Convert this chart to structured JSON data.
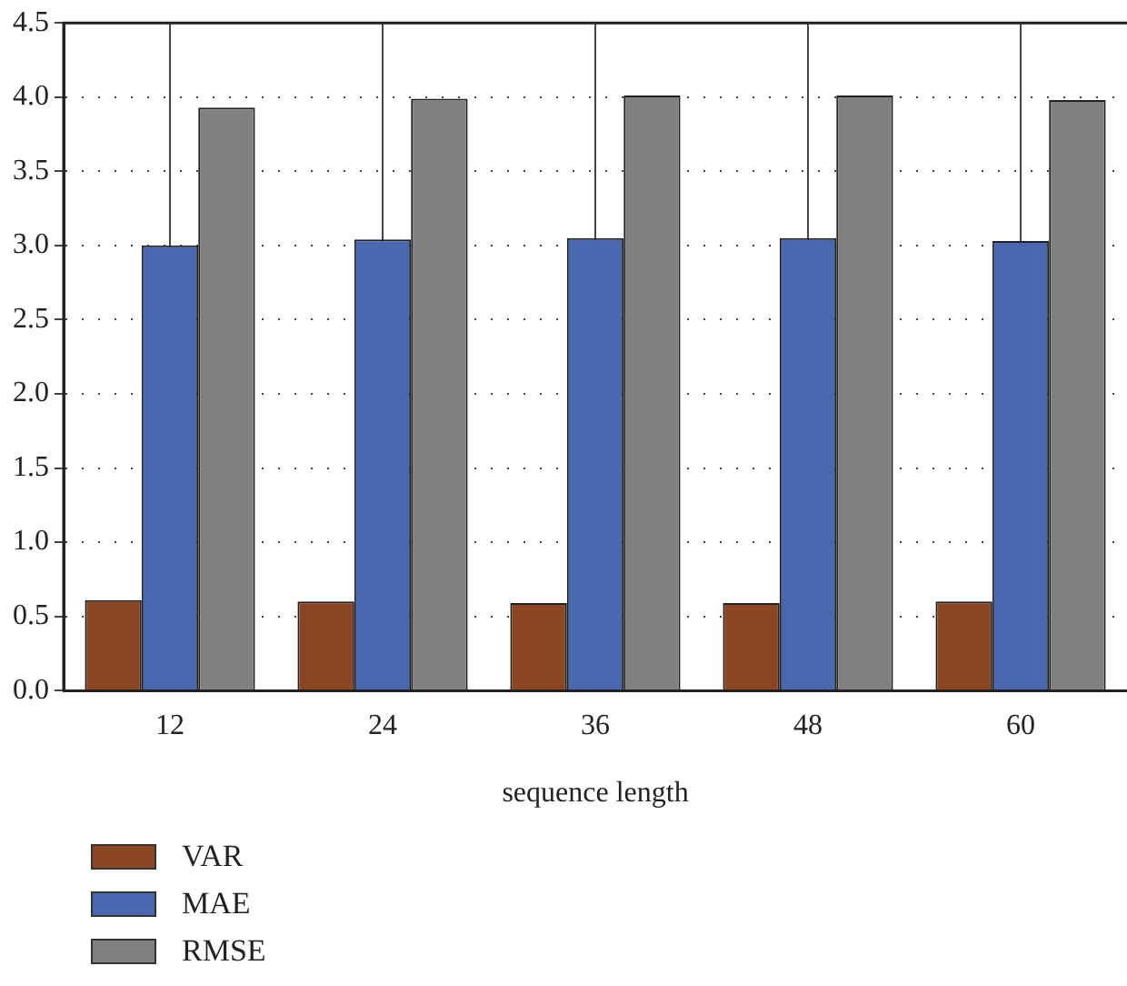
{
  "chart_data": {
    "type": "bar",
    "xlabel": "sequence length",
    "categories": [
      "12",
      "24",
      "36",
      "48",
      "60"
    ],
    "series": [
      {
        "name": "VAR",
        "color": "#8b4520",
        "values": [
          0.61,
          0.6,
          0.59,
          0.59,
          0.6
        ]
      },
      {
        "name": "MAE",
        "color": "#4868b0",
        "values": [
          3.0,
          3.04,
          3.05,
          3.05,
          3.03
        ]
      },
      {
        "name": "RMSE",
        "color": "#808080",
        "values": [
          3.93,
          3.99,
          4.01,
          4.01,
          3.98
        ]
      }
    ],
    "ylim": [
      0,
      4.5
    ],
    "yticks": [
      {
        "value": 0,
        "label": "0.0"
      },
      {
        "value": 0.5,
        "label": "0.5"
      },
      {
        "value": 1,
        "label": "1.0"
      },
      {
        "value": 1.5,
        "label": "1.5"
      },
      {
        "value": 2,
        "label": "2.0"
      },
      {
        "value": 2.5,
        "label": "2.5"
      },
      {
        "value": 3,
        "label": "3.0"
      },
      {
        "value": 3.5,
        "label": "3.5"
      },
      {
        "value": 4,
        "label": "4.0"
      },
      {
        "value": 4.5,
        "label": "4.5"
      }
    ],
    "grid": true,
    "legend": "bottom left"
  }
}
